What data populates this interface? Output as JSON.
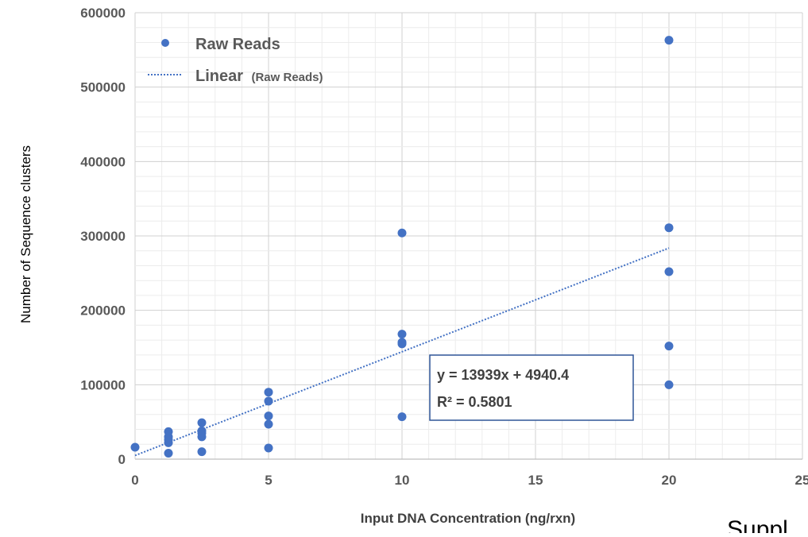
{
  "chart_data": {
    "type": "scatter",
    "xlabel": "Input DNA Concentration (ng/rxn)",
    "ylabel": "Number of Sequence clusters",
    "xlim": [
      0,
      25
    ],
    "ylim": [
      0,
      600000
    ],
    "x_ticks": [
      "0",
      "5",
      "10",
      "15",
      "20",
      "25"
    ],
    "y_ticks": [
      "0",
      "100000",
      "200000",
      "300000",
      "400000",
      "500000",
      "600000"
    ],
    "grid": true,
    "legend_position": "top-left",
    "series": [
      {
        "name": "Raw Reads",
        "color": "#4472C4",
        "points": [
          {
            "x": 0,
            "y": 16000
          },
          {
            "x": 1.25,
            "y": 37000
          },
          {
            "x": 1.25,
            "y": 30000
          },
          {
            "x": 1.25,
            "y": 26000
          },
          {
            "x": 1.25,
            "y": 22000
          },
          {
            "x": 1.25,
            "y": 8000
          },
          {
            "x": 2.5,
            "y": 49000
          },
          {
            "x": 2.5,
            "y": 38000
          },
          {
            "x": 2.5,
            "y": 35000
          },
          {
            "x": 2.5,
            "y": 30000
          },
          {
            "x": 2.5,
            "y": 10000
          },
          {
            "x": 5,
            "y": 90000
          },
          {
            "x": 5,
            "y": 78000
          },
          {
            "x": 5,
            "y": 58000
          },
          {
            "x": 5,
            "y": 47000
          },
          {
            "x": 5,
            "y": 15000
          },
          {
            "x": 10,
            "y": 304000
          },
          {
            "x": 10,
            "y": 168000
          },
          {
            "x": 10,
            "y": 157000
          },
          {
            "x": 10,
            "y": 155000
          },
          {
            "x": 10,
            "y": 57000
          },
          {
            "x": 20,
            "y": 563000
          },
          {
            "x": 20,
            "y": 311000
          },
          {
            "x": 20,
            "y": 252000
          },
          {
            "x": 20,
            "y": 152000
          },
          {
            "x": 20,
            "y": 100000
          }
        ]
      }
    ],
    "trendline": {
      "name": "Linear",
      "name_suffix": "(Raw Reads)",
      "style": "dotted",
      "color": "#4472C4",
      "slope": 13939,
      "intercept": 4940.4,
      "x_range": [
        0,
        20
      ],
      "equation_label": "y = 13939x + 4940.4",
      "r2_label": "R² = 0.5801"
    },
    "cropped_text": "Suppl"
  }
}
